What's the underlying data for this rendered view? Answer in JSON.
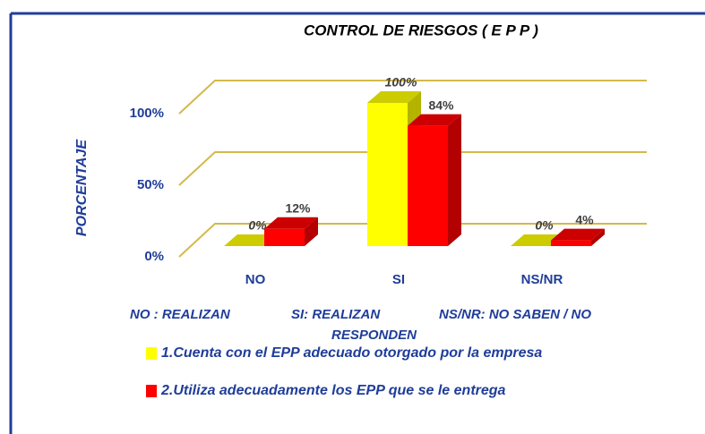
{
  "chart_data": {
    "type": "bar3d",
    "title": "CONTROL DE RIESGOS   ( E P P )",
    "ylabel": "PORCENTAJE",
    "categories": [
      "NO",
      "SI",
      "NS/NR"
    ],
    "series": [
      {
        "name": "1.Cuenta con el EPP adecuado otorgado por la empresa",
        "color": "#ffff00",
        "values": [
          0,
          100,
          0
        ],
        "value_labels": [
          "0%",
          "100%",
          "0%"
        ]
      },
      {
        "name": "2.Utiliza adecuadamente los EPP que se le entrega",
        "color": "#ff0000",
        "values": [
          12,
          84,
          4
        ],
        "value_labels": [
          "12%",
          "84%",
          "4%"
        ]
      }
    ],
    "ylim": [
      0,
      100
    ],
    "yticks": [
      {
        "value": 0,
        "label": "0%"
      },
      {
        "value": 50,
        "label": "50%"
      },
      {
        "value": 100,
        "label": "100%"
      }
    ],
    "grid": true,
    "annotations": [
      "NO : REALIZAN",
      "SI: REALIZAN",
      "NS/NR: NO SABEN / NO",
      "RESPONDEN"
    ]
  }
}
